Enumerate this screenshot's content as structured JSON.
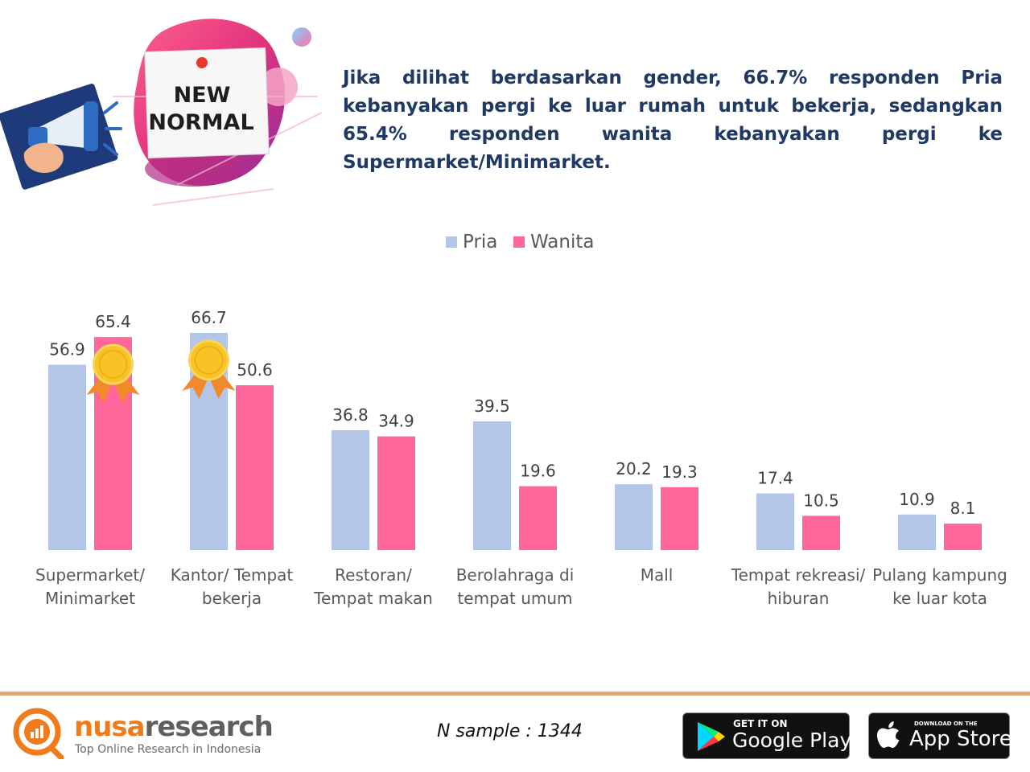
{
  "banner": {
    "sign_line1": "NEW",
    "sign_line2": "NORMAL"
  },
  "headline": "Jika dilihat berdasarkan gender, 66.7% responden Pria kebanyakan pergi ke luar rumah untuk bekerja, sedangkan 65.4% responden wanita kebanyakan pergi ke Supermarket/Minimarket.",
  "chart_data": {
    "type": "bar",
    "categories": [
      [
        "Supermarket/",
        "Minimarket"
      ],
      [
        "Kantor/ Tempat",
        "bekerja"
      ],
      [
        "Restoran/",
        "Tempat makan"
      ],
      [
        "Berolahraga di",
        "tempat umum"
      ],
      [
        "Mall"
      ],
      [
        "Tempat rekreasi/",
        "hiburan"
      ],
      [
        "Pulang kampung",
        "ke luar kota"
      ]
    ],
    "series": [
      {
        "name": "Pria",
        "color": "#b4c6e7",
        "values": [
          56.9,
          66.7,
          36.8,
          39.5,
          20.2,
          17.4,
          10.9
        ]
      },
      {
        "name": "Wanita",
        "color": "#ff6699",
        "values": [
          65.4,
          50.6,
          34.9,
          19.6,
          19.3,
          10.5,
          8.1
        ]
      }
    ],
    "legend": "top",
    "grid": false,
    "ylim": [
      0,
      70
    ],
    "highlights": [
      {
        "series": "Wanita",
        "category_index": 0,
        "icon": "medal-icon"
      },
      {
        "series": "Pria",
        "category_index": 1,
        "icon": "medal-icon"
      }
    ]
  },
  "footer": {
    "logo_nusa": "nusa",
    "logo_research": "research",
    "logo_tagline": "Top Online Research in Indonesia",
    "sample_text": "N sample :  1344",
    "google_play_small": "GET IT ON",
    "google_play_big": "Google Play",
    "app_store_small": "DOWNLOAD ON THE",
    "app_store_big": "App Store"
  }
}
